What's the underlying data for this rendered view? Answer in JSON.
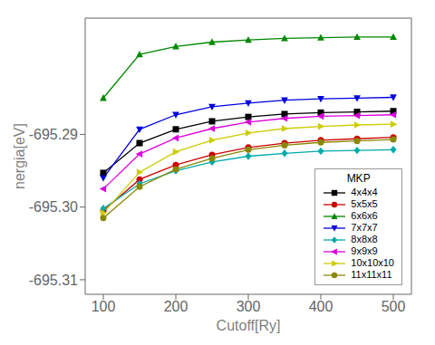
{
  "chart_data": {
    "type": "line",
    "xlabel": "Cutoff[Ry]",
    "ylabel": "nergia[eV]",
    "x": [
      100,
      150,
      200,
      250,
      300,
      350,
      400,
      450,
      500
    ],
    "xlim": [
      75,
      525
    ],
    "xticks": [
      100,
      200,
      300,
      400,
      500
    ],
    "ylim": [
      -695.312,
      -695.274
    ],
    "yticks": [
      -695.29,
      {
        "value": -695.3,
        "label": "-695.30"
      },
      -695.31
    ],
    "legend": "lower right",
    "legend_title": "MKP",
    "series": [
      {
        "name": "4x4x4",
        "color": "#000000",
        "marker": "square",
        "values": [
          -695.2953,
          -695.2912,
          -695.2893,
          -695.2882,
          -695.2876,
          -695.2872,
          -695.287,
          -695.2869,
          -695.2868
        ]
      },
      {
        "name": "5x5x5",
        "color": "#cc0000",
        "marker": "circle",
        "values": [
          -695.3005,
          -695.2962,
          -695.2942,
          -695.2928,
          -695.2918,
          -695.2912,
          -695.2908,
          -695.2906,
          -695.2904
        ]
      },
      {
        "name": "6x6x6",
        "color": "#008800",
        "marker": "triangle-up",
        "values": [
          -695.285,
          -695.279,
          -695.2779,
          -695.2773,
          -695.277,
          -695.2768,
          -695.2767,
          -695.2766,
          -695.2766
        ]
      },
      {
        "name": "7x7x7",
        "color": "#0000dd",
        "marker": "triangle-down",
        "values": [
          -695.296,
          -695.2893,
          -695.2873,
          -695.2862,
          -695.2857,
          -695.2853,
          -695.2851,
          -695.285,
          -695.2849
        ]
      },
      {
        "name": "8x8x8",
        "color": "#00aaaa",
        "marker": "diamond",
        "values": [
          -695.3002,
          -695.2968,
          -695.295,
          -695.2938,
          -695.293,
          -695.2926,
          -695.2923,
          -695.2922,
          -695.2921
        ]
      },
      {
        "name": "9x9x9",
        "color": "#dd00dd",
        "marker": "triangle-left",
        "values": [
          -695.2975,
          -695.2927,
          -695.2905,
          -695.2892,
          -695.2883,
          -695.2878,
          -695.2875,
          -695.2874,
          -695.2873
        ]
      },
      {
        "name": "10x10x10",
        "color": "#cccc00",
        "marker": "triangle-right",
        "values": [
          -695.3008,
          -695.2952,
          -695.2924,
          -695.2908,
          -695.2898,
          -695.2892,
          -695.2889,
          -695.2887,
          -695.2886
        ]
      },
      {
        "name": "11x11x11",
        "color": "#888800",
        "marker": "circle",
        "values": [
          -695.3015,
          -695.2972,
          -695.2948,
          -695.2933,
          -695.2921,
          -695.2915,
          -695.2911,
          -695.2909,
          -695.2907
        ]
      }
    ]
  }
}
